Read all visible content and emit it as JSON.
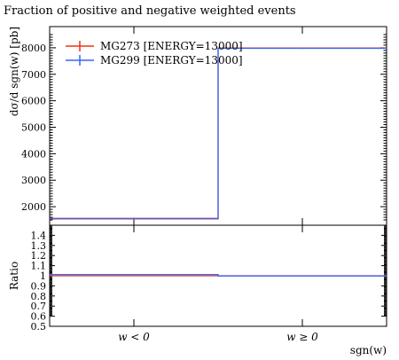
{
  "chart_data": {
    "type": "line",
    "title": "Fraction of positive and negative weighted events",
    "xlabel": "sgn(w)",
    "ylabel": "dσ/d sgn(w) [pb]",
    "ratio_ylabel": "Ratio",
    "categories": [
      "w < 0",
      "w ≥ 0"
    ],
    "ylim": [
      1300,
      8800
    ],
    "yticks": [
      2000,
      3000,
      4000,
      5000,
      6000,
      7000,
      8000
    ],
    "ratio_ylim": [
      0.5,
      1.5
    ],
    "ratio_yticks": [
      0.5,
      0.6,
      0.7,
      0.8,
      0.9,
      1,
      1.1,
      1.2,
      1.3,
      1.4
    ],
    "legend_position": "top-left",
    "series": [
      {
        "name": "MG273 [ENERGY=13000]",
        "color": "#ee3311",
        "values": [
          1540,
          7990
        ],
        "ratio": [
          1.0,
          1.0
        ]
      },
      {
        "name": "MG299 [ENERGY=13000]",
        "color": "#3366ff",
        "values": [
          1560,
          7980
        ],
        "ratio": [
          1.012,
          0.998
        ]
      }
    ]
  }
}
